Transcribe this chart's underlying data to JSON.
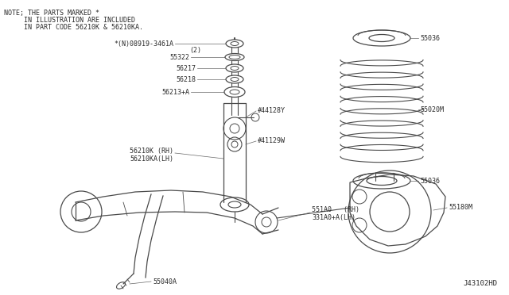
{
  "bg_color": "#ffffff",
  "line_color": "#4a4a4a",
  "text_color": "#2a2a2a",
  "note_line1": "NOTE; THE PARTS MARKED *",
  "note_line2": "     IN ILLUSTRATION ARE INCLUDED",
  "note_line3": "     IN PART CODE 56210K & 56210KA.",
  "diagram_label": "J43102HD"
}
